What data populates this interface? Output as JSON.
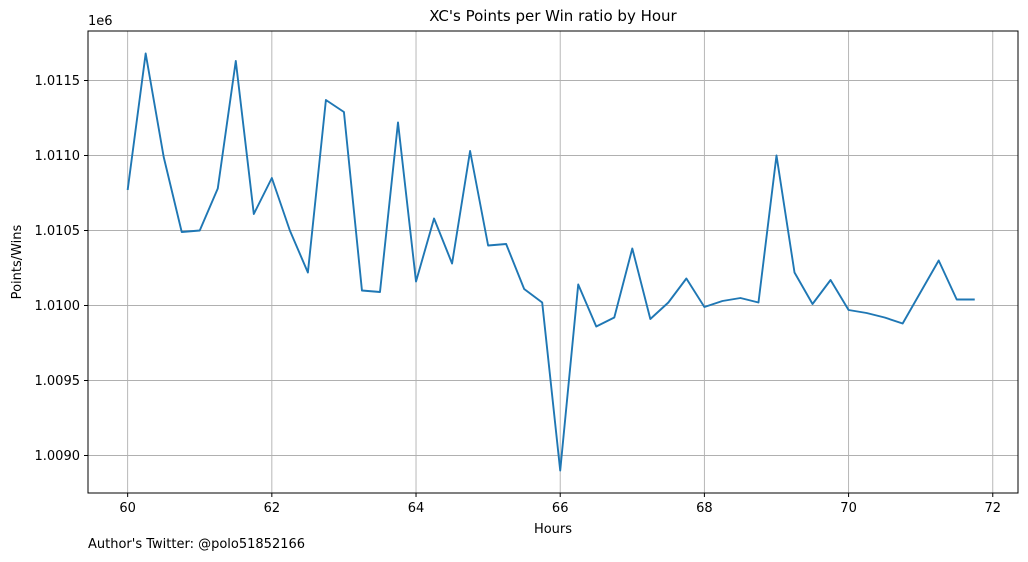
{
  "chart_data": {
    "type": "line",
    "title": "XC's Points per Win ratio by Hour",
    "xlabel": "Hours",
    "ylabel": "Points/Wins",
    "y_offset_label": "1e6",
    "xlim": [
      59.45,
      72.35
    ],
    "ylim": [
      1.00875,
      1.01183
    ],
    "x_ticks": [
      60,
      62,
      64,
      66,
      68,
      70,
      72
    ],
    "x_tick_labels": [
      "60",
      "62",
      "64",
      "66",
      "68",
      "70",
      "72"
    ],
    "y_ticks": [
      1.009,
      1.0095,
      1.01,
      1.0105,
      1.011,
      1.0115
    ],
    "y_tick_labels": [
      "1.0090",
      "1.0095",
      "1.0100",
      "1.0105",
      "1.0110",
      "1.0115"
    ],
    "grid": true,
    "series": [
      {
        "color": "#1f77b4",
        "x": [
          60.0,
          60.25,
          60.5,
          60.75,
          61.0,
          61.25,
          61.5,
          61.75,
          62.0,
          62.25,
          62.5,
          62.75,
          63.0,
          63.25,
          63.5,
          63.75,
          64.0,
          64.25,
          64.5,
          64.75,
          65.0,
          65.25,
          65.5,
          65.75,
          66.0,
          66.25,
          66.5,
          66.75,
          67.0,
          67.25,
          67.5,
          67.75,
          68.0,
          68.25,
          68.5,
          68.75,
          69.0,
          69.25,
          69.5,
          69.75,
          70.0,
          70.25,
          70.5,
          70.75,
          71.0,
          71.25,
          71.5,
          71.75
        ],
        "y": [
          1.01077,
          1.01168,
          1.01099,
          1.01049,
          1.0105,
          1.01078,
          1.01163,
          1.01061,
          1.01085,
          1.0105,
          1.01022,
          1.01137,
          1.01129,
          1.0101,
          1.01009,
          1.01122,
          1.01016,
          1.01058,
          1.01028,
          1.01103,
          1.0104,
          1.01041,
          1.01011,
          1.01002,
          1.0089,
          1.01014,
          1.00986,
          1.00992,
          1.01038,
          1.00991,
          1.01002,
          1.01018,
          1.00999,
          1.01003,
          1.01005,
          1.01002,
          1.011,
          1.01022,
          1.01001,
          1.01017,
          1.00997,
          1.00995,
          1.00992,
          1.00988,
          1.01009,
          1.0103,
          1.01004,
          1.01004
        ]
      }
    ]
  },
  "footer": {
    "credit": "Author's Twitter: @polo51852166"
  }
}
